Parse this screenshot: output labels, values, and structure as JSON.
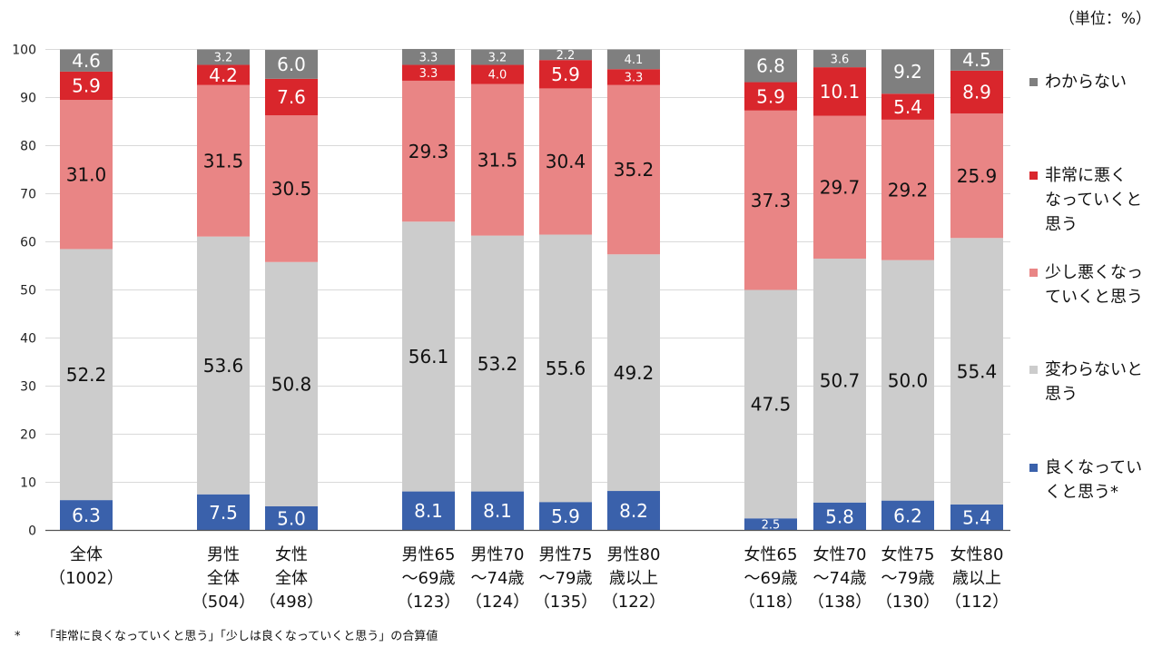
{
  "unit_label": "（単位：%）",
  "footnote": {
    "mark": "*",
    "text": "「非常に良くなっていくと思う」「少しは良くなっていくと思う」の合算値"
  },
  "legend": [
    {
      "label_lines": [
        "わからない"
      ],
      "color": "#7f7f7f"
    },
    {
      "label_lines": [
        "非常に悪く",
        "なっていくと",
        "思う"
      ],
      "color": "#d9262c"
    },
    {
      "label_lines": [
        "少し悪くなっ",
        "ていくと思う"
      ],
      "color": "#e98585"
    },
    {
      "label_lines": [
        "変わらないと",
        "思う"
      ],
      "color": "#cccccc"
    },
    {
      "label_lines": [
        "良くなってい",
        "くと思う*"
      ],
      "color": "#3a61ab"
    }
  ],
  "chart_data": {
    "type": "bar",
    "stacked": true,
    "ylim": [
      0,
      100
    ],
    "yticks": [
      0,
      10,
      20,
      30,
      40,
      50,
      60,
      70,
      80,
      90,
      100
    ],
    "categories": [
      [
        "全体",
        "（1002）"
      ],
      [
        "男性",
        "全体",
        "（504）"
      ],
      [
        "女性",
        "全体",
        "（498）"
      ],
      [
        "男性65",
        "～69歳",
        "（123）"
      ],
      [
        "男性70",
        "～74歳",
        "（124）"
      ],
      [
        "男性75",
        "～79歳",
        "（135）"
      ],
      [
        "男性80",
        "歳以上",
        "（122）"
      ],
      [
        "女性65",
        "～69歳",
        "（118）"
      ],
      [
        "女性70",
        "～74歳",
        "（138）"
      ],
      [
        "女性75",
        "～79歳",
        "（130）"
      ],
      [
        "女性80",
        "歳以上",
        "（112）"
      ]
    ],
    "series": [
      {
        "name": "良くなっていくと思う*",
        "color": "#3a61ab",
        "label_color": "#ffffff",
        "values": [
          6.3,
          7.5,
          5.0,
          8.1,
          8.1,
          5.9,
          8.2,
          2.5,
          5.8,
          6.2,
          5.4
        ]
      },
      {
        "name": "変わらないと思う",
        "color": "#cccccc",
        "label_color": "#111111",
        "values": [
          52.2,
          53.6,
          50.8,
          56.1,
          53.2,
          55.6,
          49.2,
          47.5,
          50.7,
          50.0,
          55.4
        ]
      },
      {
        "name": "少し悪くなっていくと思う",
        "color": "#e98585",
        "label_color": "#111111",
        "values": [
          31.0,
          31.5,
          30.5,
          29.3,
          31.5,
          30.4,
          35.2,
          37.3,
          29.7,
          29.2,
          25.9
        ]
      },
      {
        "name": "非常に悪くなっていくと思う",
        "color": "#d9262c",
        "label_color": "#ffffff",
        "values": [
          5.9,
          4.2,
          7.6,
          3.3,
          4.0,
          5.9,
          3.3,
          5.9,
          10.1,
          5.4,
          8.9
        ]
      },
      {
        "name": "わからない",
        "color": "#7f7f7f",
        "label_color": "#ffffff",
        "values": [
          4.6,
          3.2,
          6.0,
          3.3,
          3.2,
          2.2,
          4.1,
          6.8,
          3.6,
          9.2,
          4.5
        ]
      }
    ]
  }
}
